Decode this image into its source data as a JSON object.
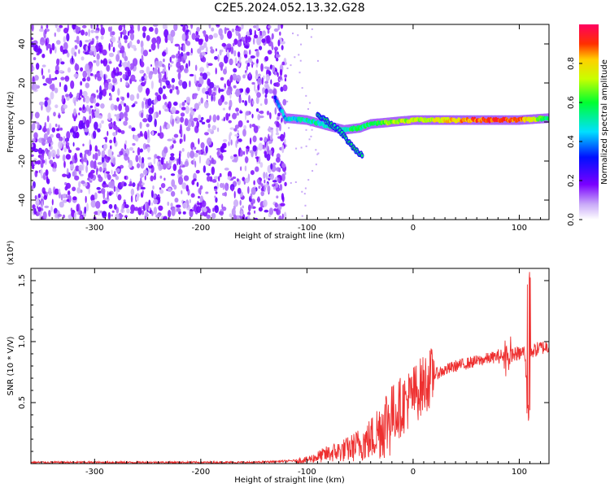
{
  "title": "C2E5.2024.052.13.32.G28",
  "colorbar": {
    "label": "Normalized spectral amplitude",
    "ticks": [
      "0.0",
      "0.2",
      "0.4",
      "0.6",
      "0.8"
    ]
  },
  "chart_data": [
    {
      "type": "heatmap",
      "xlabel": "Height of straight line (km)",
      "ylabel": "Frequency (Hz)",
      "xlim": [
        -360,
        128
      ],
      "ylim": [
        -50,
        50
      ],
      "x_ticks": [
        "-300",
        "-200",
        "-100",
        "0",
        "100"
      ],
      "y_ticks": [
        "-40",
        "-20",
        "0",
        "20",
        "40"
      ],
      "color_range": [
        0.0,
        1.0
      ],
      "noise_region_x": [
        -360,
        -120
      ],
      "ridge": [
        {
          "x": -130,
          "y": 12,
          "amp": 0.3
        },
        {
          "x": -120,
          "y": 2,
          "amp": 0.45
        },
        {
          "x": -100,
          "y": 1,
          "amp": 0.5
        },
        {
          "x": -80,
          "y": -2,
          "amp": 0.5
        },
        {
          "x": -65,
          "y": -4,
          "amp": 0.55
        },
        {
          "x": -50,
          "y": -3,
          "amp": 0.55
        },
        {
          "x": -40,
          "y": -1,
          "amp": 0.55
        },
        {
          "x": -20,
          "y": 0,
          "amp": 0.7
        },
        {
          "x": 0,
          "y": 1,
          "amp": 0.7
        },
        {
          "x": 40,
          "y": 1,
          "amp": 0.8
        },
        {
          "x": 60,
          "y": 1,
          "amp": 0.9
        },
        {
          "x": 100,
          "y": 1,
          "amp": 0.9
        },
        {
          "x": 128,
          "y": 2,
          "amp": 0.55
        }
      ],
      "branch": [
        {
          "x": -90,
          "y": 4
        },
        {
          "x": -70,
          "y": -4
        },
        {
          "x": -55,
          "y": -14
        },
        {
          "x": -48,
          "y": -17
        }
      ]
    },
    {
      "type": "line",
      "xlabel": "Height of straight line (km)",
      "ylabel": "SNR (10 * V/V)",
      "y_multiplier": "(x10⁴)",
      "xlim": [
        -360,
        128
      ],
      "ylim": [
        0,
        1.6
      ],
      "x_ticks": [
        "-300",
        "-200",
        "-100",
        "0",
        "100"
      ],
      "y_ticks": [
        "0.5",
        "1.0",
        "1.5"
      ],
      "color": "#ee3030",
      "series": [
        {
          "x": [
            -360,
            -300,
            -200,
            -150,
            -120,
            -100,
            -80,
            -60,
            -40,
            -30,
            -20,
            -10,
            0,
            10,
            20,
            40,
            60,
            80,
            90,
            100,
            105,
            108,
            110,
            115,
            120,
            128
          ],
          "y": [
            0.01,
            0.01,
            0.01,
            0.01,
            0.02,
            0.03,
            0.08,
            0.12,
            0.2,
            0.3,
            0.4,
            0.48,
            0.56,
            0.65,
            0.73,
            0.8,
            0.84,
            0.88,
            0.89,
            0.9,
            0.92,
            0.5,
            0.92,
            0.93,
            0.95,
            0.96
          ]
        }
      ]
    }
  ]
}
